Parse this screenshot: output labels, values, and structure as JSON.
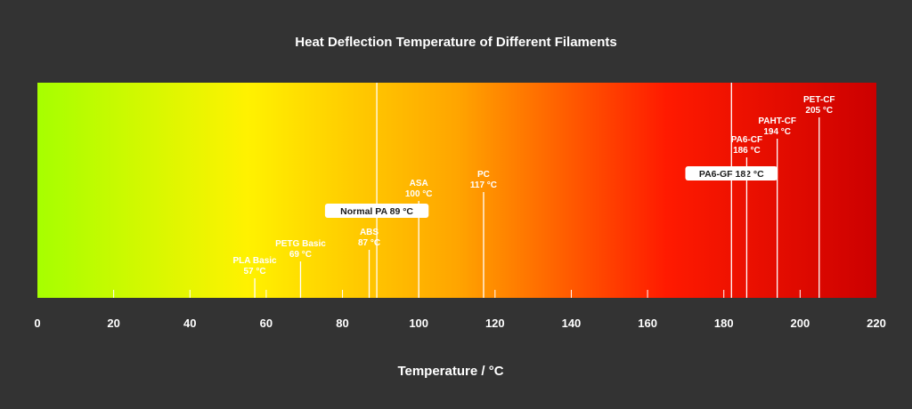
{
  "chart_data": {
    "type": "bar",
    "title": "Heat Deflection Temperature of Different Filaments",
    "xlabel": "Temperature / °C",
    "ylabel": "",
    "xlim": [
      0,
      220
    ],
    "ticks": [
      0,
      20,
      40,
      60,
      80,
      100,
      120,
      140,
      160,
      180,
      200,
      220
    ],
    "gradient_colors": [
      "#a6ff00",
      "#fff200",
      "#ffa500",
      "#ff1a00",
      "#cc0000"
    ],
    "materials": [
      {
        "name": "PLA Basic",
        "value": 57,
        "label_lines": [
          "PLA Basic",
          "57 °C"
        ],
        "style": "text"
      },
      {
        "name": "PETG Basic",
        "value": 69,
        "label_lines": [
          "PETG Basic",
          "69 °C"
        ],
        "style": "text"
      },
      {
        "name": "ABS",
        "value": 87,
        "label_lines": [
          "ABS",
          "87 °C"
        ],
        "style": "text"
      },
      {
        "name": "Normal PA",
        "value": 89,
        "label_lines": [
          "Normal PA  89 °C"
        ],
        "style": "box"
      },
      {
        "name": "ASA",
        "value": 100,
        "label_lines": [
          "ASA",
          "100 °C"
        ],
        "style": "text"
      },
      {
        "name": "PC",
        "value": 117,
        "label_lines": [
          "PC",
          "117 °C"
        ],
        "style": "text"
      },
      {
        "name": "PA6-GF",
        "value": 182,
        "label_lines": [
          "PA6-GF  182 °C"
        ],
        "style": "box"
      },
      {
        "name": "PA6-CF",
        "value": 186,
        "label_lines": [
          "PA6-CF",
          "186 °C"
        ],
        "style": "text"
      },
      {
        "name": "PAHT-CF",
        "value": 194,
        "label_lines": [
          "PAHT-CF",
          "194 °C"
        ],
        "style": "text"
      },
      {
        "name": "PET-CF",
        "value": 205,
        "label_lines": [
          "PET-CF",
          "205 °C"
        ],
        "style": "text"
      }
    ]
  }
}
